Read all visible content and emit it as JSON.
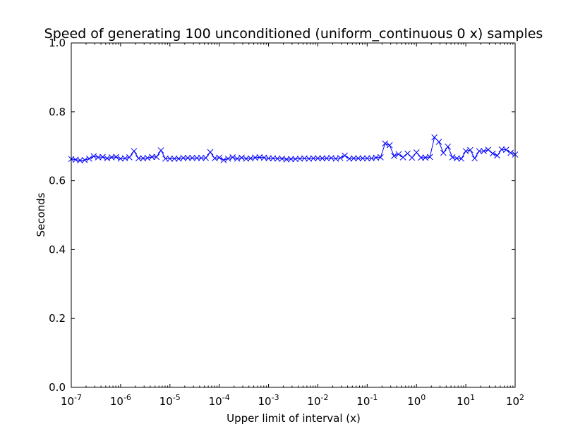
{
  "chart_data": {
    "type": "line",
    "title": "Speed of generating 100 unconditioned (uniform_continuous 0 x) samples",
    "xlabel": "Upper limit of interval (x)",
    "ylabel": "Seconds",
    "xscale": "log",
    "xlim": [
      1e-07,
      100
    ],
    "ylim": [
      0,
      1
    ],
    "grid": false,
    "legend": "none",
    "marker": "x",
    "line_color": "#0000ff",
    "xticks": [
      {
        "base": "10",
        "exp": "-7"
      },
      {
        "base": "10",
        "exp": "-6"
      },
      {
        "base": "10",
        "exp": "-5"
      },
      {
        "base": "10",
        "exp": "-4"
      },
      {
        "base": "10",
        "exp": "-3"
      },
      {
        "base": "10",
        "exp": "-2"
      },
      {
        "base": "10",
        "exp": "-1"
      },
      {
        "base": "10",
        "exp": "0"
      },
      {
        "base": "10",
        "exp": "1"
      },
      {
        "base": "10",
        "exp": "2"
      }
    ],
    "yticks": [
      "0.0",
      "0.2",
      "0.4",
      "0.6",
      "0.8",
      "1.0"
    ],
    "series": [
      {
        "x": [
          1e-07,
          1.23e-07,
          1.51e-07,
          1.87e-07,
          2.31e-07,
          2.85e-07,
          3.51e-07,
          4.33e-07,
          5.34e-07,
          6.58e-07,
          8.11e-07,
          1e-06,
          1.23e-06,
          1.51e-06,
          1.87e-06,
          2.31e-06,
          2.85e-06,
          3.51e-06,
          4.33e-06,
          5.34e-06,
          6.58e-06,
          8.11e-06,
          1e-05,
          1.23e-05,
          1.51e-05,
          1.87e-05,
          2.31e-05,
          2.85e-05,
          3.51e-05,
          4.33e-05,
          5.34e-05,
          6.58e-05,
          8.11e-05,
          0.0001,
          0.000123,
          0.000151,
          0.000187,
          0.000231,
          0.000285,
          0.000351,
          0.000433,
          0.000534,
          0.000658,
          0.000811,
          0.001,
          0.00123,
          0.00151,
          0.00187,
          0.00231,
          0.00285,
          0.00351,
          0.00433,
          0.00534,
          0.00658,
          0.00811,
          0.01,
          0.0123,
          0.0151,
          0.0187,
          0.0231,
          0.0285,
          0.0351,
          0.0433,
          0.0534,
          0.0658,
          0.0811,
          0.1,
          0.123,
          0.151,
          0.187,
          0.231,
          0.285,
          0.351,
          0.433,
          0.534,
          0.658,
          0.811,
          1,
          1.23,
          1.51,
          1.87,
          2.31,
          2.85,
          3.51,
          4.33,
          5.34,
          6.58,
          8.11,
          10,
          12.3,
          15.1,
          18.7,
          23.1,
          28.5,
          35.1,
          43.3,
          53.4,
          65.8,
          81.1,
          100
        ],
        "y": [
          0.663,
          0.661,
          0.659,
          0.66,
          0.664,
          0.671,
          0.668,
          0.669,
          0.665,
          0.668,
          0.669,
          0.664,
          0.665,
          0.668,
          0.686,
          0.665,
          0.665,
          0.666,
          0.669,
          0.669,
          0.688,
          0.664,
          0.664,
          0.664,
          0.664,
          0.666,
          0.666,
          0.666,
          0.666,
          0.666,
          0.666,
          0.683,
          0.665,
          0.667,
          0.66,
          0.664,
          0.668,
          0.664,
          0.667,
          0.664,
          0.665,
          0.667,
          0.668,
          0.667,
          0.665,
          0.665,
          0.664,
          0.664,
          0.662,
          0.663,
          0.663,
          0.664,
          0.665,
          0.664,
          0.665,
          0.665,
          0.665,
          0.665,
          0.666,
          0.664,
          0.666,
          0.673,
          0.664,
          0.665,
          0.665,
          0.665,
          0.665,
          0.665,
          0.667,
          0.668,
          0.708,
          0.703,
          0.672,
          0.677,
          0.668,
          0.679,
          0.667,
          0.682,
          0.667,
          0.667,
          0.669,
          0.726,
          0.713,
          0.681,
          0.699,
          0.668,
          0.665,
          0.664,
          0.686,
          0.689,
          0.665,
          0.686,
          0.686,
          0.69,
          0.679,
          0.673,
          0.691,
          0.69,
          0.681,
          0.676
        ]
      }
    ]
  }
}
